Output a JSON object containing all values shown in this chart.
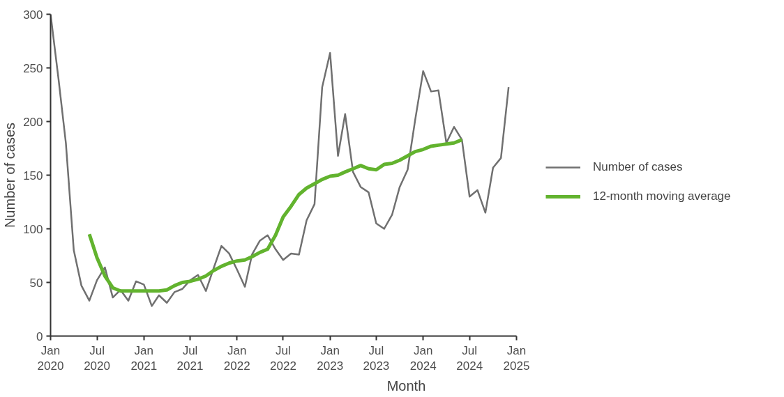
{
  "chart_data": {
    "type": "line",
    "xlabel": "Month",
    "ylabel": "Number of cases",
    "xlim": [
      "2020-01",
      "2025-01"
    ],
    "ylim": [
      0,
      300
    ],
    "xticks": [
      {
        "value": "2020-01",
        "label": "Jan\n2020"
      },
      {
        "value": "2020-07",
        "label": "Jul\n2020"
      },
      {
        "value": "2021-01",
        "label": "Jan\n2021"
      },
      {
        "value": "2021-07",
        "label": "Jul\n2021"
      },
      {
        "value": "2022-01",
        "label": "Jan\n2022"
      },
      {
        "value": "2022-07",
        "label": "Jul\n2022"
      },
      {
        "value": "2023-01",
        "label": "Jan\n2023"
      },
      {
        "value": "2023-07",
        "label": "Jul\n2023"
      },
      {
        "value": "2024-01",
        "label": "Jan\n2024"
      },
      {
        "value": "2024-07",
        "label": "Jul\n2024"
      },
      {
        "value": "2025-01",
        "label": "Jan\n2025"
      }
    ],
    "yticks": [
      0,
      50,
      100,
      150,
      200,
      250,
      300
    ],
    "grid": false,
    "legend": "right",
    "line_style": "solid",
    "marker": "none",
    "series": [
      {
        "name": "Number of cases",
        "color": "#707070",
        "x": [
          "2020-01",
          "2020-02",
          "2020-03",
          "2020-04",
          "2020-05",
          "2020-06",
          "2020-07",
          "2020-08",
          "2020-09",
          "2020-10",
          "2020-11",
          "2020-12",
          "2021-01",
          "2021-02",
          "2021-03",
          "2021-04",
          "2021-05",
          "2021-06",
          "2021-07",
          "2021-08",
          "2021-09",
          "2021-10",
          "2021-11",
          "2021-12",
          "2022-01",
          "2022-02",
          "2022-03",
          "2022-04",
          "2022-05",
          "2022-06",
          "2022-07",
          "2022-08",
          "2022-09",
          "2022-10",
          "2022-11",
          "2022-12",
          "2023-01",
          "2023-02",
          "2023-03",
          "2023-04",
          "2023-05",
          "2023-06",
          "2023-07",
          "2023-08",
          "2023-09",
          "2023-10",
          "2023-11",
          "2023-12",
          "2024-01",
          "2024-02",
          "2024-03",
          "2024-04",
          "2024-05",
          "2024-06",
          "2024-07",
          "2024-08",
          "2024-09",
          "2024-10",
          "2024-11",
          "2024-12"
        ],
        "values": [
          300,
          240,
          180,
          80,
          47,
          33,
          52,
          64,
          36,
          43,
          33,
          51,
          48,
          28,
          38,
          31,
          41,
          44,
          52,
          57,
          42,
          63,
          84,
          77,
          62,
          46,
          76,
          89,
          94,
          81,
          71,
          77,
          76,
          108,
          123,
          232,
          264,
          168,
          207,
          153,
          139,
          134,
          105,
          100,
          113,
          139,
          155,
          202,
          247,
          228,
          229,
          180,
          195,
          183,
          130,
          136,
          115,
          157,
          166,
          232
        ]
      },
      {
        "name": "12-month moving average",
        "color": "#62b32e",
        "x": [
          "2020-06",
          "2020-07",
          "2020-08",
          "2020-09",
          "2020-10",
          "2020-11",
          "2020-12",
          "2021-01",
          "2021-02",
          "2021-03",
          "2021-04",
          "2021-05",
          "2021-06",
          "2021-07",
          "2021-08",
          "2021-09",
          "2021-10",
          "2021-11",
          "2021-12",
          "2022-01",
          "2022-02",
          "2022-03",
          "2022-04",
          "2022-05",
          "2022-06",
          "2022-07",
          "2022-08",
          "2022-09",
          "2022-10",
          "2022-11",
          "2022-12",
          "2023-01",
          "2023-02",
          "2023-03",
          "2023-04",
          "2023-05",
          "2023-06",
          "2023-07",
          "2023-08",
          "2023-09",
          "2023-10",
          "2023-11",
          "2023-12",
          "2024-01",
          "2024-02",
          "2024-03",
          "2024-04",
          "2024-05",
          "2024-06"
        ],
        "values": [
          95,
          73,
          56,
          45,
          42,
          42,
          42,
          42,
          42,
          42,
          43,
          47,
          50,
          51,
          53,
          56,
          61,
          65,
          68,
          70,
          71,
          74,
          78,
          81,
          94,
          111,
          121,
          132,
          138,
          142,
          146,
          149,
          150,
          153,
          156,
          159,
          156,
          155,
          160,
          161,
          164,
          168,
          172,
          174,
          177,
          178,
          179,
          180,
          183
        ]
      }
    ]
  }
}
